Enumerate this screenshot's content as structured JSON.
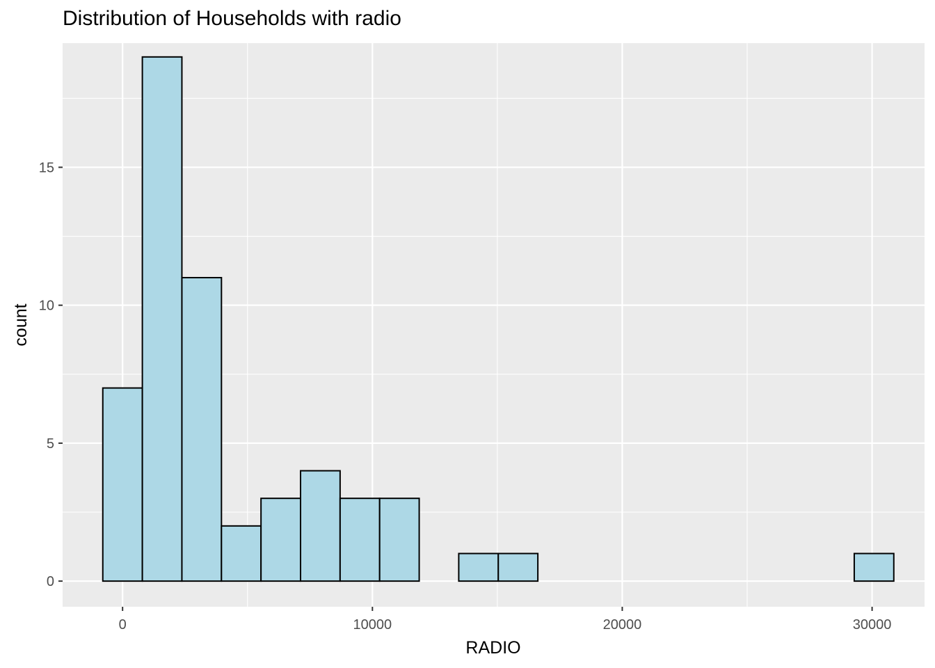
{
  "chart_data": {
    "type": "bar",
    "title": "Distribution of Households with radio",
    "xlabel": "RADIO",
    "ylabel": "count",
    "xlim": [
      -2400,
      32100
    ],
    "ylim": [
      -0.93,
      19.5
    ],
    "x_ticks": [
      0,
      10000,
      20000,
      30000
    ],
    "x_tick_labels": [
      "0",
      "10000",
      "20000",
      "30000"
    ],
    "y_ticks": [
      0,
      5,
      10,
      15
    ],
    "y_tick_labels": [
      "0",
      "5",
      "10",
      "15"
    ],
    "bin_width": 1583,
    "bin_centers": [
      0,
      1583,
      3166,
      4749,
      6332,
      7915,
      9498,
      11081,
      12664,
      14247,
      15830,
      17413,
      18996,
      20579,
      22162,
      23745,
      25328,
      26911,
      28494,
      30077
    ],
    "values": [
      7,
      19,
      11,
      2,
      3,
      4,
      3,
      3,
      0,
      1,
      1,
      0,
      0,
      0,
      0,
      0,
      0,
      0,
      0,
      1
    ],
    "fill_color": "#ADD8E6",
    "outline_color": "#000000",
    "panel_background": "#EBEBEB",
    "grid_color": "#FFFFFF",
    "grid": true
  }
}
